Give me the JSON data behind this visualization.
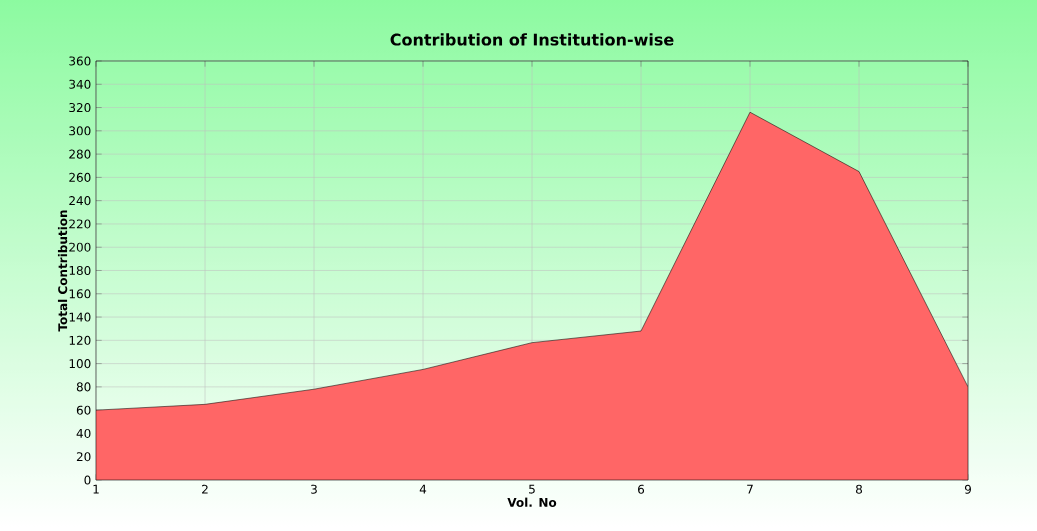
{
  "chart_data": {
    "type": "area",
    "title": "Contribution of Institution-wise",
    "xlabel": "Vol. No",
    "ylabel": "Total Contribution",
    "x": [
      1,
      2,
      3,
      4,
      5,
      6,
      7,
      8,
      9
    ],
    "values": [
      60,
      65,
      78,
      95,
      118,
      128,
      316,
      265,
      80
    ],
    "color": "#ff6666",
    "xlim": [
      1,
      9
    ],
    "xticks": [
      1,
      2,
      3,
      4,
      5,
      6,
      7,
      8,
      9
    ],
    "ylim": [
      0,
      360
    ],
    "yticks": [
      0,
      20,
      40,
      60,
      80,
      100,
      120,
      140,
      160,
      180,
      200,
      220,
      240,
      260,
      280,
      300,
      320,
      340,
      360
    ],
    "grid": true
  }
}
